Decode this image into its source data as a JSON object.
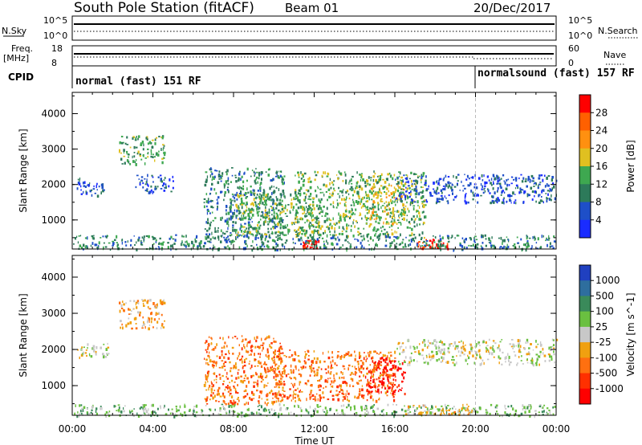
{
  "header": {
    "station": "South Pole Station (fitACF)",
    "beam": "Beam 01",
    "date": "20/Dec/2017"
  },
  "summary": {
    "nsky_label": "N.Sky",
    "nsky_ticks": [
      "10^5",
      "10^0"
    ],
    "nsearch_label": "N.Search",
    "nsearch_ticks": [
      "10^5",
      "10^0"
    ],
    "freq_label_1": "Freq.",
    "freq_label_2": "[MHz]",
    "freq_ticks": [
      "18",
      "8"
    ],
    "nave_label": "Nave",
    "nave_ticks": [
      "60",
      "0"
    ],
    "cpid_label": "CPID",
    "cpid_modes": [
      {
        "label": "normal (fast) 151 RF",
        "start": 0
      },
      {
        "label": "normalsound (fast) 157 RF",
        "start": 20
      }
    ]
  },
  "chart_data": [
    {
      "type": "heatmap",
      "panel": "power",
      "ylabel": "Slant Range [km]",
      "xlabel": "Time UT",
      "x_ticks": [
        "00:00",
        "04:00",
        "08:00",
        "12:00",
        "16:00",
        "20:00",
        "00:00"
      ],
      "x_range_hours": [
        0,
        24
      ],
      "ylim_km": [
        180,
        4600
      ],
      "y_ticks": [
        1000,
        2000,
        3000,
        4000
      ],
      "colorbar_label": "Power [dB]",
      "colorbar_ticks": [
        "4",
        "8",
        "12",
        "16",
        "20",
        "24",
        "28"
      ],
      "colorbar_colors": [
        "#1a2cff",
        "#1e4fc8",
        "#2d7a5a",
        "#3ea850",
        "#e0c020",
        "#ff9010",
        "#ff6000",
        "#ff0000"
      ],
      "mode_change_hour": 20,
      "echo_regions": [
        {
          "t0": 0.2,
          "t1": 1.6,
          "r0": 1700,
          "r1": 2200,
          "level": 1
        },
        {
          "t0": 2.3,
          "t1": 4.6,
          "r0": 2600,
          "r1": 3400,
          "level": 3
        },
        {
          "t0": 3.0,
          "t1": 5.0,
          "r0": 1800,
          "r1": 2300,
          "level": 1
        },
        {
          "t0": 6.5,
          "t1": 10.5,
          "r0": 500,
          "r1": 2500,
          "level": 2
        },
        {
          "t0": 8.0,
          "t1": 12.0,
          "r0": 600,
          "r1": 1800,
          "level": 3
        },
        {
          "t0": 11.0,
          "t1": 17.5,
          "r0": 500,
          "r1": 2400,
          "level": 3
        },
        {
          "t0": 14.5,
          "t1": 16.5,
          "r0": 900,
          "r1": 2000,
          "level": 4
        },
        {
          "t0": 16.0,
          "t1": 24.0,
          "r0": 1500,
          "r1": 2300,
          "level": 1
        },
        {
          "t0": 11.4,
          "t1": 12.2,
          "r0": 200,
          "r1": 450,
          "level": 7
        },
        {
          "t0": 17.0,
          "t1": 18.6,
          "r0": 200,
          "r1": 500,
          "level": 7
        },
        {
          "t0": 0.0,
          "t1": 24.0,
          "r0": 180,
          "r1": 600,
          "level": 2
        }
      ]
    },
    {
      "type": "heatmap",
      "panel": "velocity",
      "ylabel": "Slant Range [km]",
      "xlabel": "Time UT",
      "x_ticks": [
        "00:00",
        "04:00",
        "08:00",
        "12:00",
        "16:00",
        "20:00",
        "00:00"
      ],
      "x_range_hours": [
        0,
        24
      ],
      "ylim_km": [
        180,
        4600
      ],
      "y_ticks": [
        1000,
        2000,
        3000,
        4000
      ],
      "colorbar_label": "Velocity [m s^-1]",
      "colorbar_ticks": [
        "1000",
        "500",
        "100",
        "25",
        "-25",
        "-100",
        "-500",
        "-1000"
      ],
      "colorbar_colors": [
        "#2040c0",
        "#2e6e9e",
        "#3a8a5a",
        "#6ac040",
        "#c8c8c8",
        "#f0a010",
        "#ff7010",
        "#ff3000",
        "#ff0000"
      ],
      "mode_change_hour": 20,
      "echo_regions": [
        {
          "t0": 0.2,
          "t1": 1.8,
          "r0": 1800,
          "r1": 2200,
          "level": 4
        },
        {
          "t0": 2.3,
          "t1": 4.6,
          "r0": 2600,
          "r1": 3400,
          "level": 5
        },
        {
          "t0": 6.5,
          "t1": 10.5,
          "r0": 500,
          "r1": 2400,
          "level": 6
        },
        {
          "t0": 10.0,
          "t1": 16.0,
          "r0": 600,
          "r1": 2000,
          "level": 6
        },
        {
          "t0": 14.5,
          "t1": 16.5,
          "r0": 800,
          "r1": 1800,
          "level": 8
        },
        {
          "t0": 16.0,
          "t1": 24.0,
          "r0": 1600,
          "r1": 2300,
          "level": 4
        },
        {
          "t0": 0.0,
          "t1": 24.0,
          "r0": 180,
          "r1": 500,
          "level": 3
        },
        {
          "t0": 16.5,
          "t1": 20.0,
          "r0": 200,
          "r1": 500,
          "level": 5
        }
      ]
    }
  ]
}
